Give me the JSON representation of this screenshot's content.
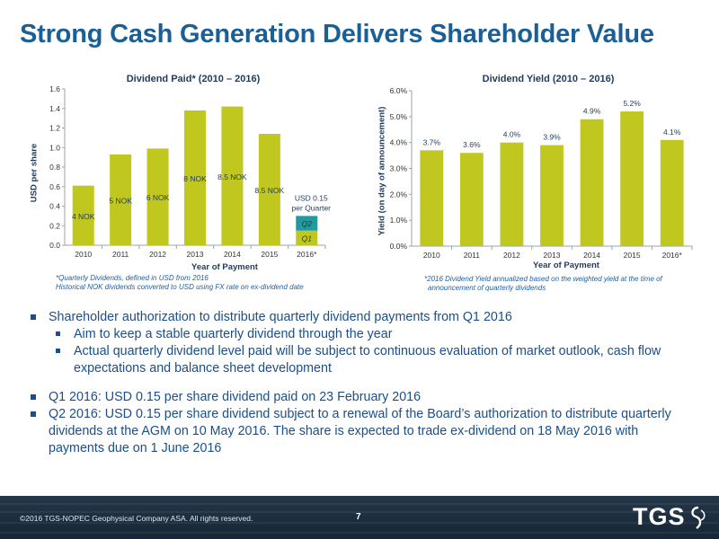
{
  "slide": {
    "title": "Strong Cash Generation Delivers Shareholder Value"
  },
  "charts": [
    {
      "title": "Dividend Paid* (2010 – 2016)",
      "ylabel": "USD per share",
      "xlabel": "Year of Payment",
      "footnote_line1": "*Quarterly Dividends, defined in USD from 2016",
      "footnote_line2": "Historical NOK dividends converted to USD using FX rate on ex-dividend date"
    },
    {
      "title": "Dividend Yield (2010 – 2016)",
      "ylabel": "Yield (on day of announcement)",
      "xlabel": "Year of Payment",
      "footnote_line1": "*2016 Dividend Yield annualized based on the weighted yield at the time of",
      "footnote_line2": "announcement of quarterly dividends"
    }
  ],
  "chart_data": [
    {
      "type": "bar",
      "title": "Dividend Paid* (2010 – 2016)",
      "xlabel": "Year of Payment",
      "ylabel": "USD per share",
      "categories": [
        "2010",
        "2011",
        "2012",
        "2013",
        "2014",
        "2015",
        "2016*"
      ],
      "values": [
        0.61,
        0.93,
        0.99,
        1.38,
        1.42,
        1.14,
        0.3
      ],
      "data_labels": [
        "4 NOK",
        "5 NOK",
        "6 NOK",
        "8 NOK",
        "8.5 NOK",
        "8.5 NOK",
        ""
      ],
      "stacked_2016": [
        {
          "label": "Q1",
          "value": 0.15,
          "color": "#c0c820"
        },
        {
          "label": "Q2",
          "value": 0.15,
          "color": "#1e9aa0"
        }
      ],
      "annotation_2016_line1": "USD 0.15",
      "annotation_2016_line2": "per Quarter",
      "ylim": [
        0,
        1.6
      ],
      "yticks": [
        "0.0",
        "0.2",
        "0.4",
        "0.6",
        "0.8",
        "1.0",
        "1.2",
        "1.4",
        "1.6"
      ],
      "grid": false,
      "bar_color": "#c0c820"
    },
    {
      "type": "bar",
      "title": "Dividend Yield (2010 – 2016)",
      "xlabel": "Year of Payment",
      "ylabel": "Yield (on day of announcement)",
      "categories": [
        "2010",
        "2011",
        "2012",
        "2013",
        "2014",
        "2015",
        "2016*"
      ],
      "values": [
        3.7,
        3.6,
        4.0,
        3.9,
        4.9,
        5.2,
        4.1
      ],
      "data_labels": [
        "3.7%",
        "3.6%",
        "4.0%",
        "3.9%",
        "4.9%",
        "5.2%",
        "4.1%"
      ],
      "ylim": [
        0,
        6
      ],
      "yticks": [
        "0.0%",
        "1.0%",
        "2.0%",
        "3.0%",
        "4.0%",
        "5.0%",
        "6.0%"
      ],
      "grid": false,
      "bar_color": "#c0c820"
    }
  ],
  "bullets": {
    "b1": "Shareholder authorization to distribute quarterly dividend payments from Q1 2016",
    "b1_sub1": "Aim to keep a stable quarterly dividend through the year",
    "b1_sub2": "Actual quarterly dividend level paid will be subject to continuous evaluation of market outlook, cash flow expectations and balance sheet development",
    "b2": "Q1 2016: USD 0.15 per share dividend paid on 23 February 2016",
    "b3": "Q2 2016: USD 0.15 per share dividend subject to a renewal of the Board’s authorization to distribute quarterly dividends at the AGM on 10 May 2016. The share is expected to trade ex-dividend on 18 May 2016 with payments due on 1 June 2016"
  },
  "footer": {
    "copyright": "©2016 TGS-NOPEC Geophysical Company ASA. All rights reserved.",
    "page_number": "7",
    "logo_text": "TGS",
    "logo_icon": "swirl-logo-icon"
  }
}
